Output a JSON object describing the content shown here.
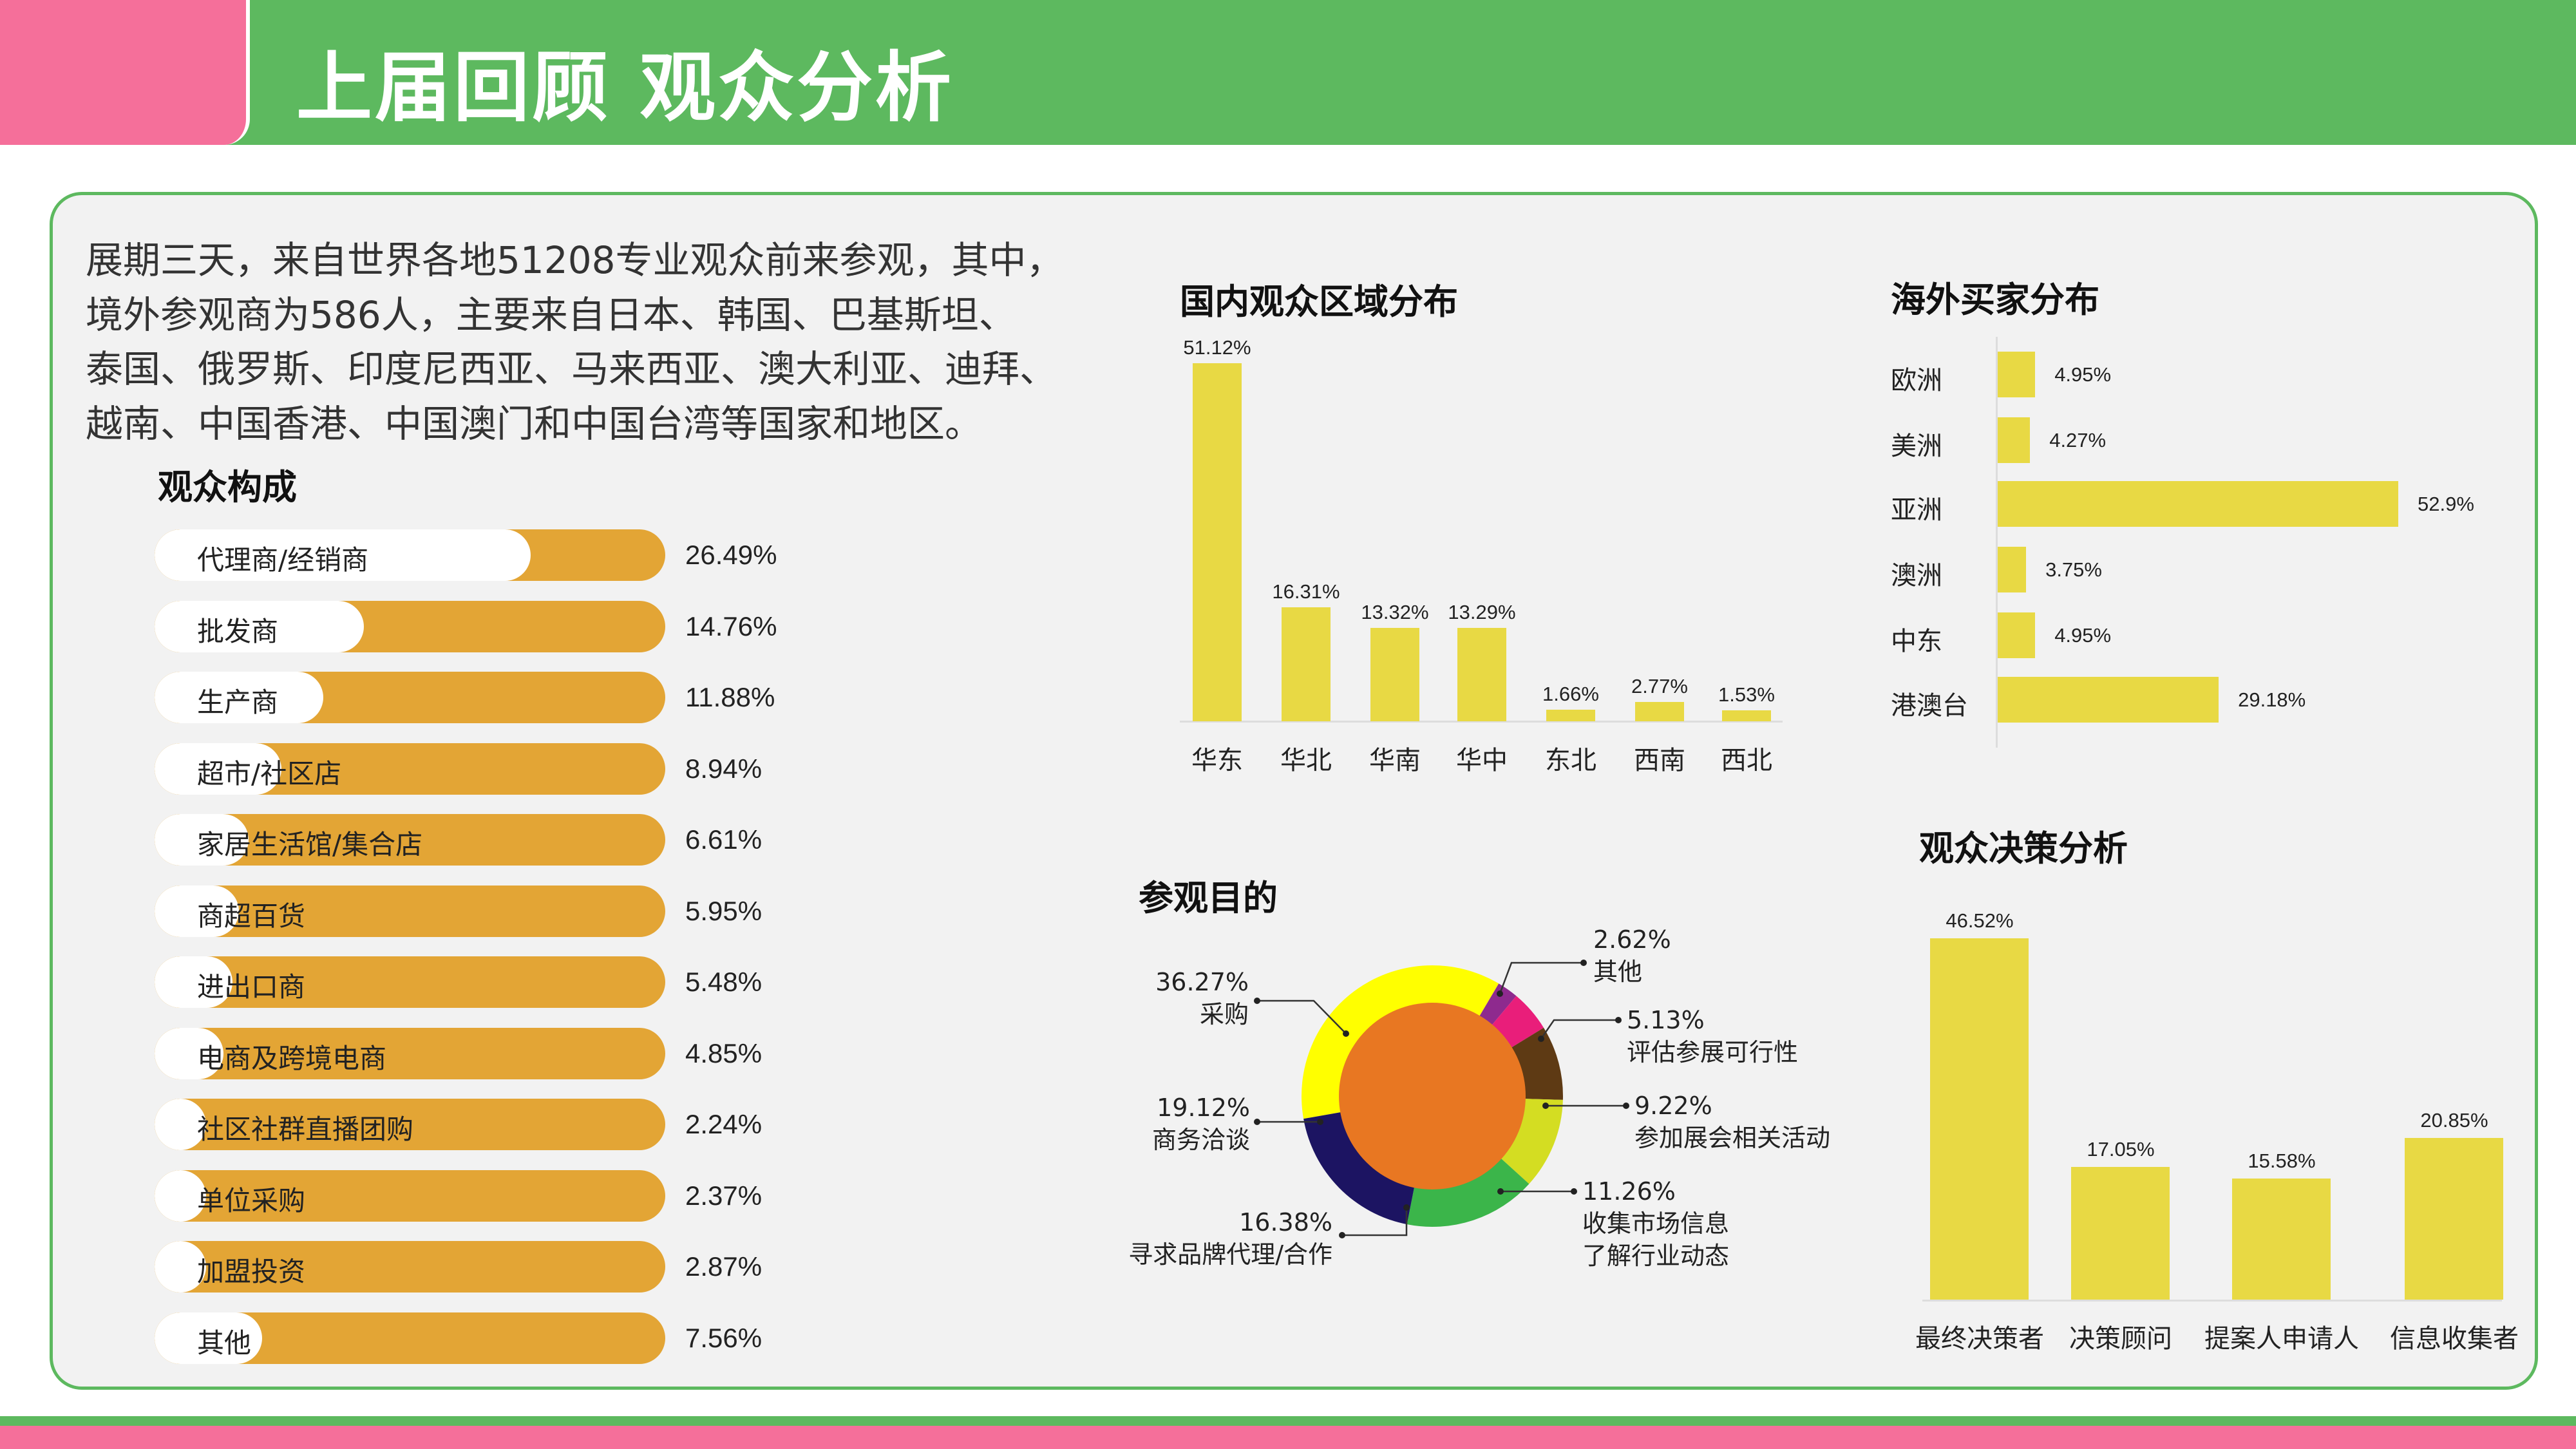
{
  "header": {
    "title": "上届回顾 观众分析"
  },
  "intro": {
    "lines": [
      "展期三天，来自世界各地51208专业观众前来参观，其中，",
      "境外参观商为586人，主要来自日本、韩国、巴基斯坦、",
      "泰国、俄罗斯、印度尼西亚、马来西亚、澳大利亚、迪拜、",
      "越南、中国香港、中国澳门和中国台湾等国家和地区。"
    ]
  },
  "colors": {
    "green": "#5db95f",
    "pink": "#f56f9a",
    "orange_bar": "#e3a535",
    "yellow_bar": "#e8d944"
  },
  "chart_data": [
    {
      "id": "composition",
      "type": "bar",
      "orientation": "horizontal",
      "title": "观众构成",
      "categories": [
        "代理商/经销商",
        "批发商",
        "生产商",
        "超市/社区店",
        "家居生活馆/集合店",
        "商超百货",
        "进出口商",
        "电商及跨境电商",
        "社区社群直播团购",
        "单位采购",
        "加盟投资",
        "其他"
      ],
      "values": [
        26.49,
        14.76,
        11.88,
        8.94,
        6.61,
        5.95,
        5.48,
        4.85,
        2.24,
        2.37,
        2.87,
        7.56
      ],
      "labels": [
        "26.49%",
        "14.76%",
        "11.88%",
        "8.94%",
        "6.61%",
        "5.95%",
        "5.48%",
        "4.85%",
        "2.24%",
        "2.37%",
        "2.87%",
        "7.56%"
      ],
      "xlim": [
        0,
        36
      ]
    },
    {
      "id": "domestic",
      "type": "bar",
      "title": "国内观众区域分布",
      "categories": [
        "华东",
        "华北",
        "华南",
        "华中",
        "东北",
        "西南",
        "西北"
      ],
      "values": [
        51.12,
        16.31,
        13.32,
        13.29,
        1.66,
        2.77,
        1.53
      ],
      "labels": [
        "51.12%",
        "16.31%",
        "13.32%",
        "13.29%",
        "1.66%",
        "2.77%",
        "1.53%"
      ],
      "ylim": [
        0,
        51.12
      ]
    },
    {
      "id": "overseas",
      "type": "bar",
      "orientation": "horizontal",
      "title": "海外买家分布",
      "categories": [
        "欧洲",
        "美洲",
        "亚洲",
        "澳洲",
        "中东",
        "港澳台"
      ],
      "values": [
        4.95,
        4.27,
        52.9,
        3.75,
        4.95,
        29.18
      ],
      "labels": [
        "4.95%",
        "4.27%",
        "52.9%",
        "3.75%",
        "4.95%",
        "29.18%"
      ],
      "xlim": [
        0,
        52.9
      ]
    },
    {
      "id": "purpose",
      "type": "pie",
      "title": "参观目的",
      "donut": true,
      "categories": [
        "采购",
        "其他",
        "评估参展可行性",
        "参加展会相关活动",
        "收集市场信息 了解行业动态",
        "寻求品牌代理/合作",
        "商务洽谈"
      ],
      "label_lines": [
        [
          "采购"
        ],
        [
          "其他"
        ],
        [
          "评估参展可行性"
        ],
        [
          "参加展会相关活动"
        ],
        [
          "收集市场信息",
          "了解行业动态"
        ],
        [
          "寻求品牌代理/合作"
        ],
        [
          "商务洽谈"
        ]
      ],
      "values": [
        36.27,
        2.62,
        5.13,
        9.22,
        11.26,
        16.38,
        19.12
      ],
      "labels": [
        "36.27%",
        "2.62%",
        "5.13%",
        "9.22%",
        "11.26%",
        "16.38%",
        "19.12%"
      ],
      "colors": [
        "#ffff00",
        "#8e2a8e",
        "#e91e7a",
        "#5e3a14",
        "#d4dd22",
        "#3bb54a",
        "#1c1462"
      ],
      "center_color": "#e87722"
    },
    {
      "id": "decision",
      "type": "bar",
      "title": "观众决策分析",
      "categories": [
        "最终决策者",
        "决策顾问",
        "提案人申请人",
        "信息收集者"
      ],
      "values": [
        46.52,
        17.05,
        15.58,
        20.85
      ],
      "labels": [
        "46.52%",
        "17.05%",
        "15.58%",
        "20.85%"
      ],
      "ylim": [
        0,
        46.52
      ]
    }
  ]
}
